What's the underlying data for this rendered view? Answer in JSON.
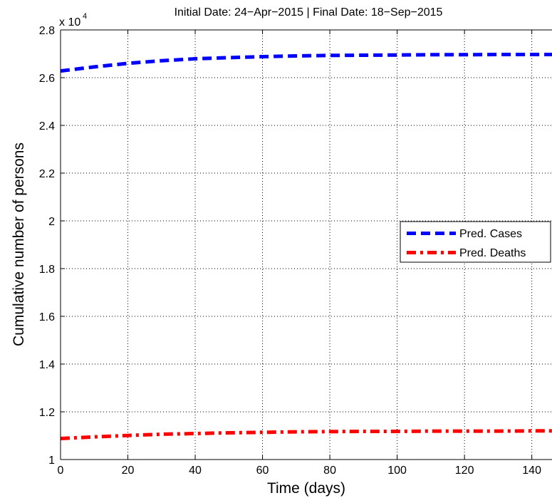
{
  "chart_data": {
    "type": "line",
    "title": "Initial Date: 24−Apr−2015 | Final Date: 18−Sep−2015",
    "xlabel": "Time (days)",
    "ylabel": "Cumulative number of persons",
    "y_multiplier": {
      "base": "x 10",
      "exponent": "4"
    },
    "xlim": [
      0,
      146
    ],
    "ylim": [
      1,
      2.8
    ],
    "x_ticks": [
      0,
      20,
      40,
      60,
      80,
      100,
      120,
      140
    ],
    "x_tick_labels": [
      "0",
      "20",
      "40",
      "60",
      "80",
      "100",
      "120",
      "140"
    ],
    "y_ticks": [
      1,
      1.2,
      1.4,
      1.6,
      1.8,
      2,
      2.2,
      2.4,
      2.6,
      2.8
    ],
    "y_tick_labels": [
      "1",
      "1.2",
      "1.4",
      "1.6",
      "1.8",
      "2",
      "2.2",
      "2.4",
      "2.6",
      "2.8"
    ],
    "grid": true,
    "legend_position": "right",
    "series": [
      {
        "name": "Pred. Cases",
        "color": "#0000ff",
        "style": "dashed",
        "x": [
          0,
          10,
          20,
          30,
          40,
          50,
          60,
          70,
          80,
          90,
          100,
          110,
          120,
          130,
          140,
          146
        ],
        "y": [
          2.628,
          2.645,
          2.66,
          2.671,
          2.679,
          2.684,
          2.688,
          2.691,
          2.693,
          2.694,
          2.695,
          2.696,
          2.696,
          2.697,
          2.697,
          2.697
        ]
      },
      {
        "name": "Pred. Deaths",
        "color": "#ff0000",
        "style": "dashdot",
        "x": [
          0,
          10,
          20,
          30,
          40,
          50,
          60,
          70,
          80,
          90,
          100,
          110,
          120,
          130,
          140,
          146
        ],
        "y": [
          1.088,
          1.095,
          1.101,
          1.106,
          1.109,
          1.112,
          1.114,
          1.116,
          1.117,
          1.118,
          1.118,
          1.119,
          1.119,
          1.119,
          1.12,
          1.12
        ]
      }
    ]
  }
}
